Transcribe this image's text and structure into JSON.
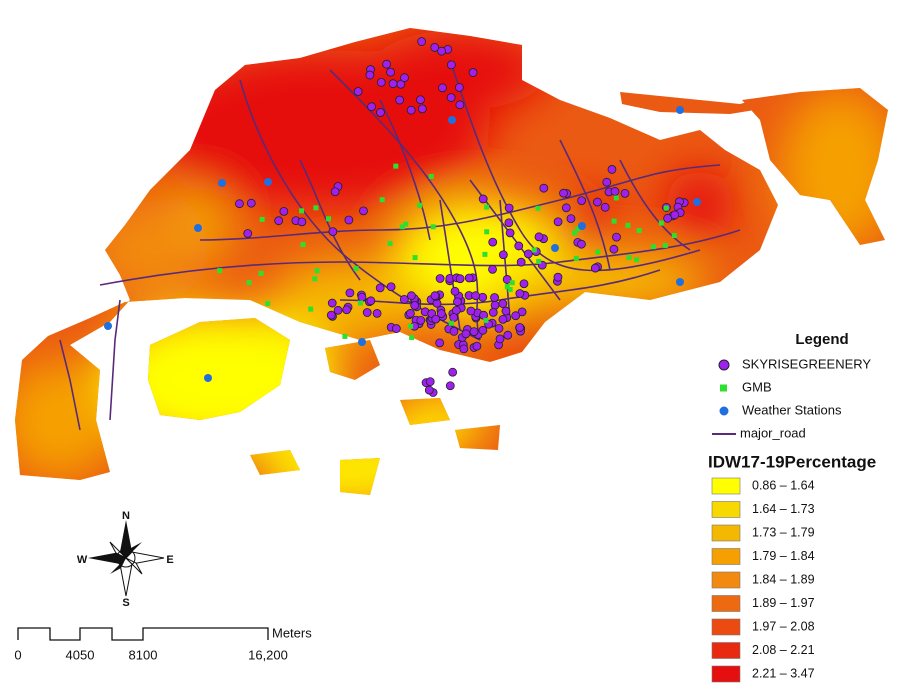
{
  "legend": {
    "title": "Legend",
    "items": [
      {
        "label": "SKYRISEGREENERY",
        "color": "#a020f0"
      },
      {
        "label": "GMB",
        "color": "#2ee02e"
      },
      {
        "label": "Weather Stations",
        "color": "#1f6fe0"
      },
      {
        "label": "major_road",
        "color": "#5a2a7a"
      }
    ],
    "raster_title": "IDW17-19Percentage",
    "classes": [
      {
        "label": "0.86 – 1.64",
        "color": "#ffff00"
      },
      {
        "label": "1.64 – 1.73",
        "color": "#f7d800"
      },
      {
        "label": "1.73 – 1.79",
        "color": "#f5b800"
      },
      {
        "label": "1.79 – 1.84",
        "color": "#f5a000"
      },
      {
        "label": "1.84 – 1.89",
        "color": "#f28a10"
      },
      {
        "label": "1.89 – 1.97",
        "color": "#ee6a10"
      },
      {
        "label": "1.97 – 2.08",
        "color": "#eb4a10"
      },
      {
        "label": "2.08 – 2.21",
        "color": "#e82a10"
      },
      {
        "label": "2.21 – 3.47",
        "color": "#e60f10"
      }
    ]
  },
  "compass": {
    "n": "N",
    "e": "E",
    "s": "S",
    "w": "W"
  },
  "scale_bar": {
    "unit": "Meters",
    "labels": [
      "0",
      "4050",
      "8100",
      "16,200"
    ]
  }
}
